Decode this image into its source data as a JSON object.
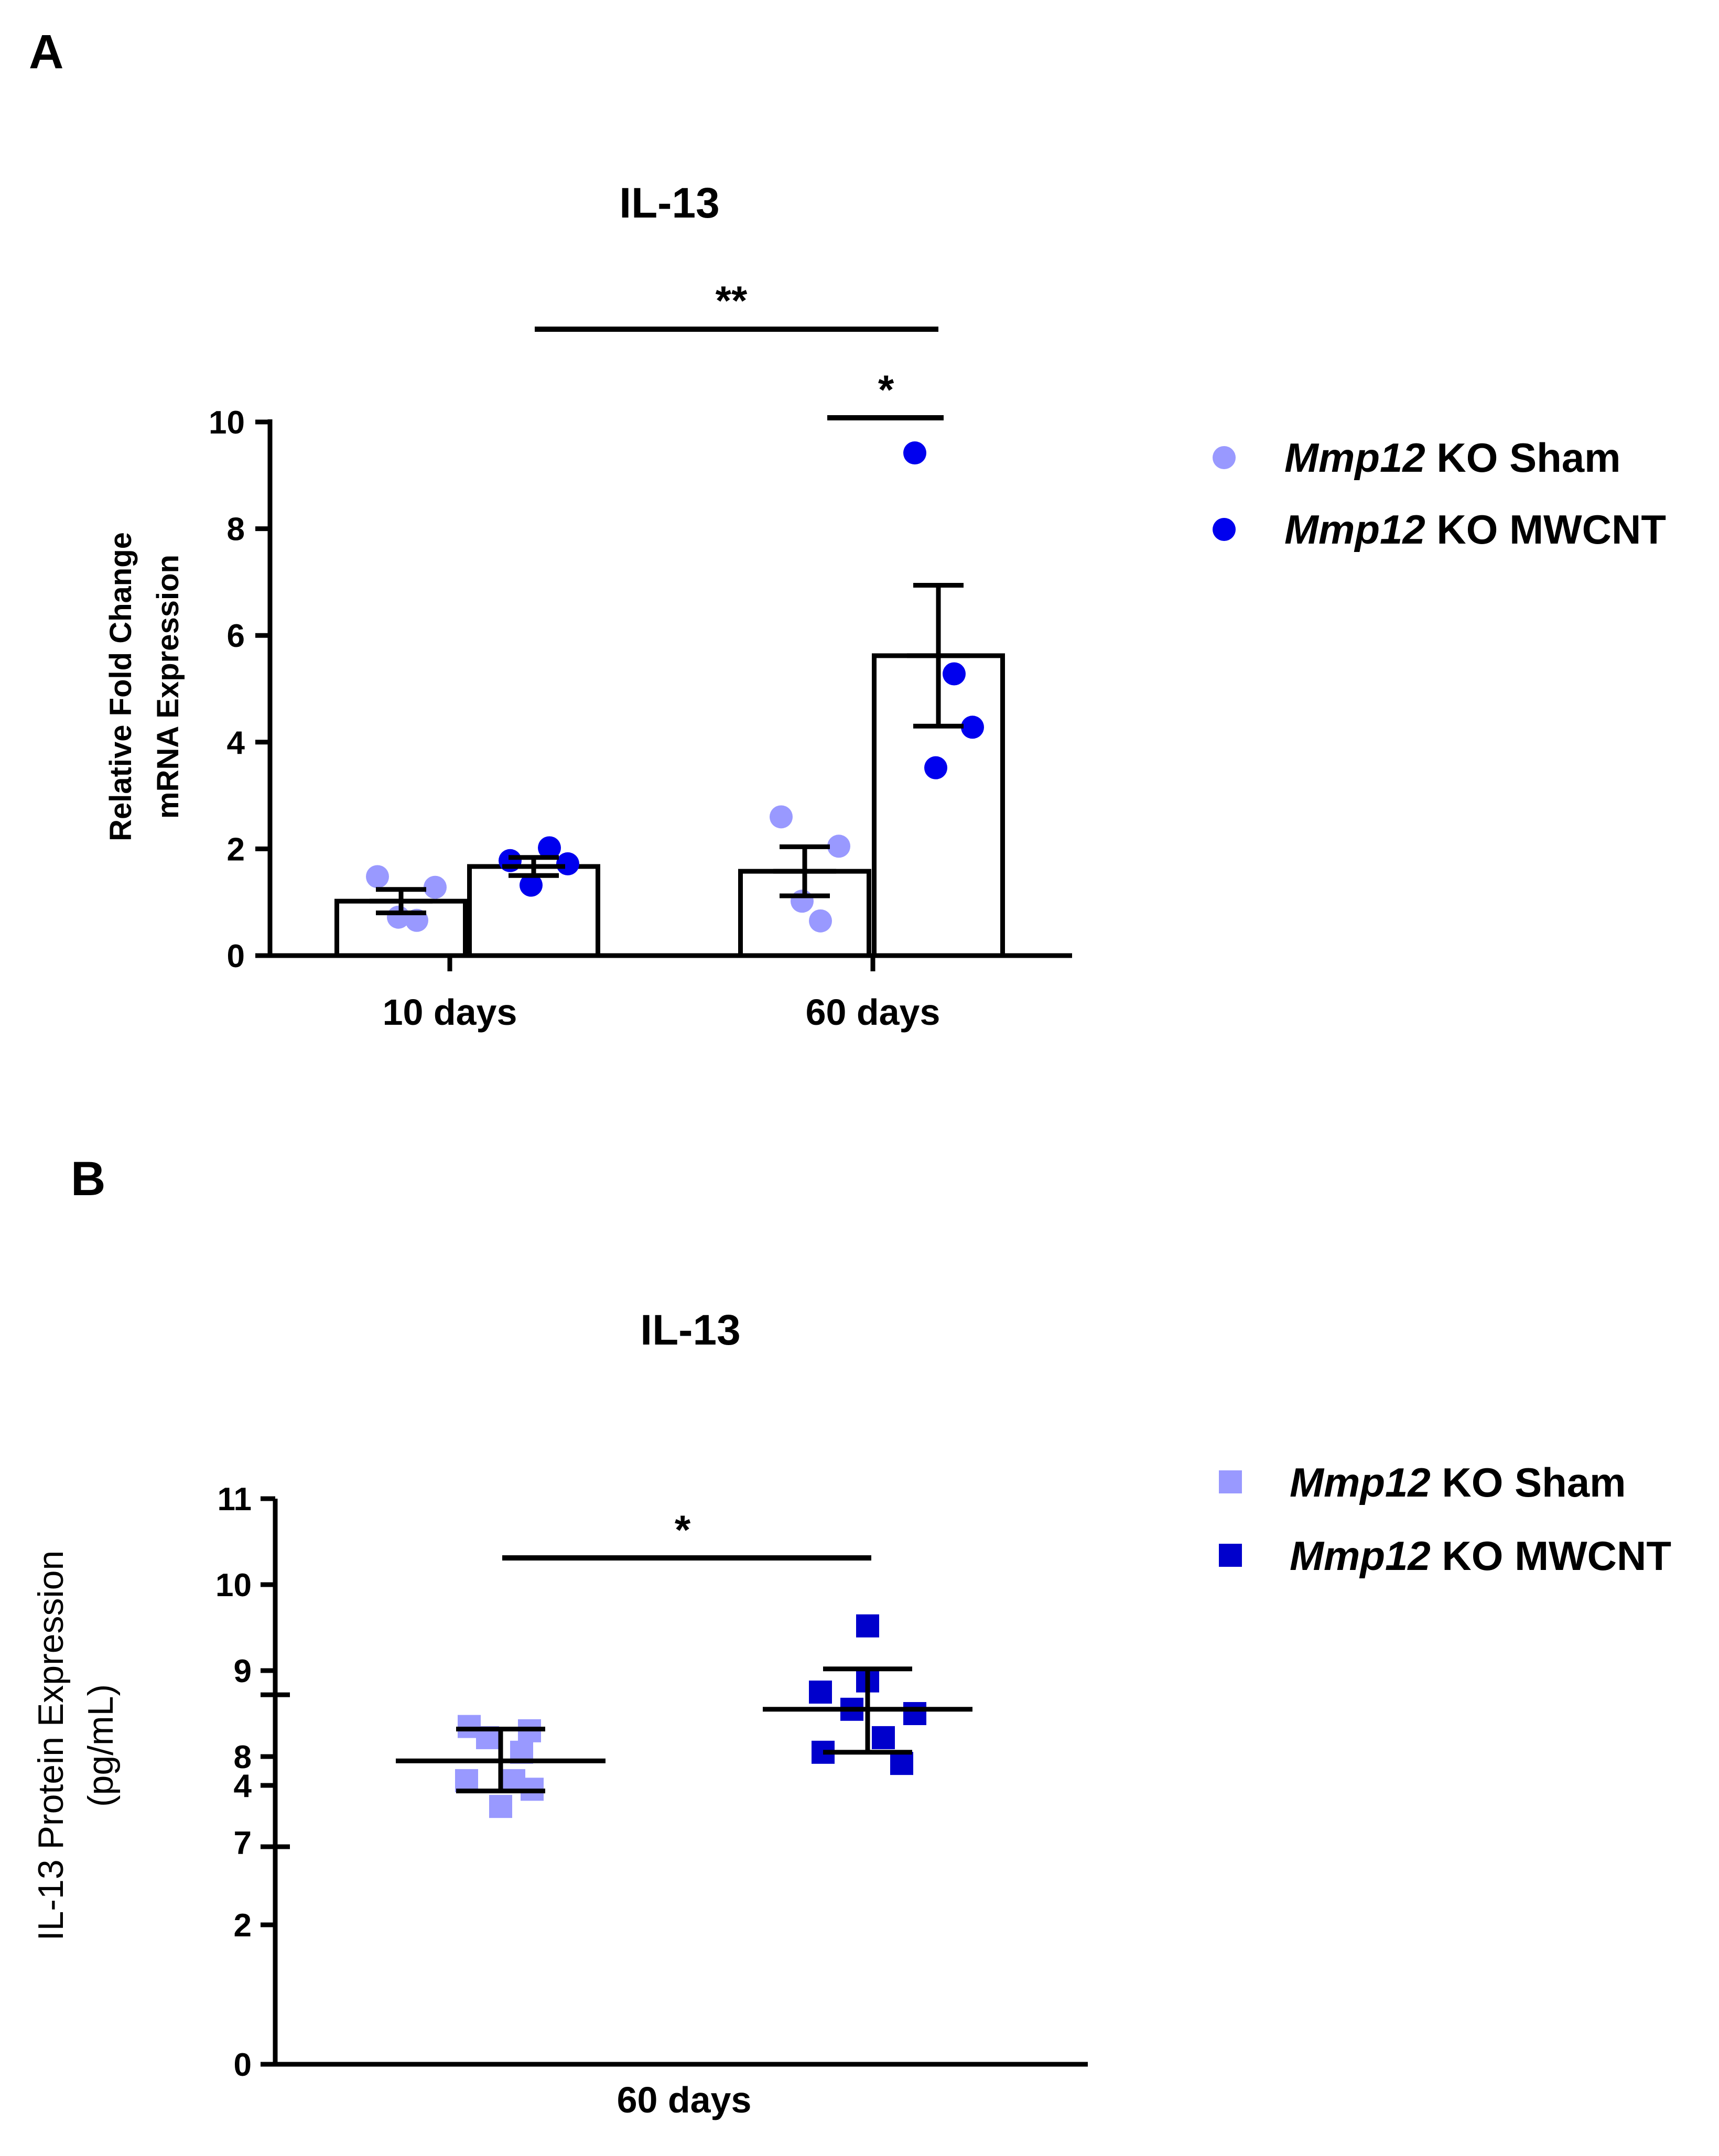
{
  "panels": {
    "a": "A",
    "b": "B"
  },
  "chart_data": [
    {
      "type": "bar",
      "title": "IL-13",
      "ylabel_line1": "Relative Fold Change",
      "ylabel_line2": "mRNA Expression",
      "ylim": [
        0,
        10
      ],
      "yticks": [
        "0",
        "2",
        "4",
        "6",
        "8",
        "10"
      ],
      "categories": [
        "10 days",
        "60 days"
      ],
      "series": [
        {
          "name_italic": "Mmp12",
          "name_rest": " KO Sham",
          "color": "#9999ff",
          "means": [
            1.02,
            1.58
          ],
          "sem": [
            0.22,
            0.46
          ],
          "points": [
            [
              1.48,
              0.66,
              1.28,
              0.72
            ],
            [
              2.6,
              0.65,
              2.05,
              1.02
            ]
          ]
        },
        {
          "name_italic": "Mmp12",
          "name_rest": " KO MWCNT",
          "color": "#0000ee",
          "means": [
            1.67,
            5.62
          ],
          "sem": [
            0.17,
            1.32
          ],
          "points": [
            [
              1.78,
              2.02,
              1.72,
              1.32
            ],
            [
              9.42,
              5.28,
              4.28,
              3.52
            ]
          ]
        }
      ],
      "significance": [
        {
          "label": "**",
          "between": "10 days MWCNT vs 60 days MWCNT"
        },
        {
          "label": "*",
          "between": "60 days Sham vs 60 days MWCNT"
        }
      ]
    },
    {
      "type": "scatter",
      "title": "IL-13",
      "ylabel_line1": "IL-13 Protein Expression",
      "ylabel_line2": "(pg/mL)",
      "yticks_low": [
        "0",
        "2",
        "4"
      ],
      "yticks_high": [
        "7",
        "8",
        "9",
        "10",
        "11"
      ],
      "ylim_low": [
        0,
        5
      ],
      "ylim_high": [
        7,
        11
      ],
      "category": "60 days",
      "series": [
        {
          "name_italic": "Mmp12",
          "name_rest": " KO Sham",
          "color": "#9999ff",
          "mean": 7.95,
          "sd_low": 7.6,
          "sd_high": 8.32,
          "points": [
            8.35,
            8.3,
            8.22,
            8.05,
            7.72,
            7.72,
            7.62,
            7.42
          ]
        },
        {
          "name_italic": "Mmp12",
          "name_rest": " KO MWCNT",
          "color": "#0000cc",
          "mean": 8.55,
          "sd_low": 8.05,
          "sd_high": 9.02,
          "points": [
            9.52,
            8.88,
            8.75,
            8.55,
            8.5,
            8.22,
            8.05,
            7.92
          ]
        }
      ],
      "significance": [
        {
          "label": "*",
          "between": "Sham vs MWCNT"
        }
      ]
    }
  ]
}
